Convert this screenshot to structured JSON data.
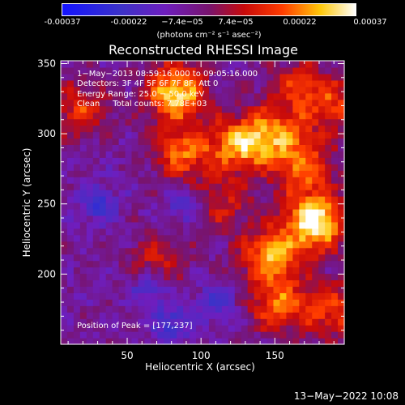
{
  "colorbar": {
    "ticks": [
      "-0.00037",
      "-0.00022",
      "−7.4e−05",
      "7.4e−05",
      "0.00022",
      "0.00037"
    ],
    "units": "(photons cm⁻² s⁻¹ asec⁻²)"
  },
  "title": "Reconstructed RHESSI Image",
  "info": {
    "time": "1−May−2013 08:59:16.000 to 09:05:16.000",
    "detectors": "Detectors: 3F 4F 5F 6F 7F 8F, Att 0",
    "energy": "Energy Range: 25.0 − 50.0 keV",
    "method": "Clean     Total counts: 7.78E+03"
  },
  "peak_label": "Position of Peak = [177,237]",
  "date_stamp": "13−May−2022 10:08",
  "chart_data": {
    "type": "heatmap",
    "title": "Reconstructed RHESSI Image",
    "xlabel": "Heliocentric X (arcsec)",
    "ylabel": "Heliocentric Y (arcsec)",
    "xlim": [
      5,
      197
    ],
    "ylim": [
      150,
      352
    ],
    "xticks": [
      50,
      100,
      150
    ],
    "yticks": [
      200,
      250,
      300,
      350
    ],
    "colorbar_range": [
      -0.00037,
      0.00037
    ],
    "colormap": "rainbow-blue-purple-red-yellow-white",
    "peak": [
      177,
      237
    ],
    "bright_regions": [
      {
        "x": 177,
        "y": 237,
        "intensity": 1.0
      },
      {
        "x": 83,
        "y": 330,
        "intensity": 0.85
      },
      {
        "x": 88,
        "y": 287,
        "intensity": 0.6
      },
      {
        "x": 127,
        "y": 293,
        "intensity": 0.75
      },
      {
        "x": 153,
        "y": 300,
        "intensity": 0.55
      },
      {
        "x": 170,
        "y": 275,
        "intensity": 0.55
      },
      {
        "x": 147,
        "y": 213,
        "intensity": 0.7
      },
      {
        "x": 153,
        "y": 178,
        "intensity": 0.55
      },
      {
        "x": 190,
        "y": 175,
        "intensity": 0.5
      },
      {
        "x": 18,
        "y": 318,
        "intensity": 0.45
      },
      {
        "x": 165,
        "y": 335,
        "intensity": 0.4
      },
      {
        "x": 115,
        "y": 250,
        "intensity": 0.35
      },
      {
        "x": 70,
        "y": 210,
        "intensity": 0.35
      },
      {
        "x": 190,
        "y": 320,
        "intensity": 0.45
      }
    ],
    "dark_regions": [
      {
        "x": 30,
        "y": 250
      },
      {
        "x": 65,
        "y": 190
      },
      {
        "x": 90,
        "y": 250
      },
      {
        "x": 110,
        "y": 180
      },
      {
        "x": 80,
        "y": 165
      }
    ]
  }
}
